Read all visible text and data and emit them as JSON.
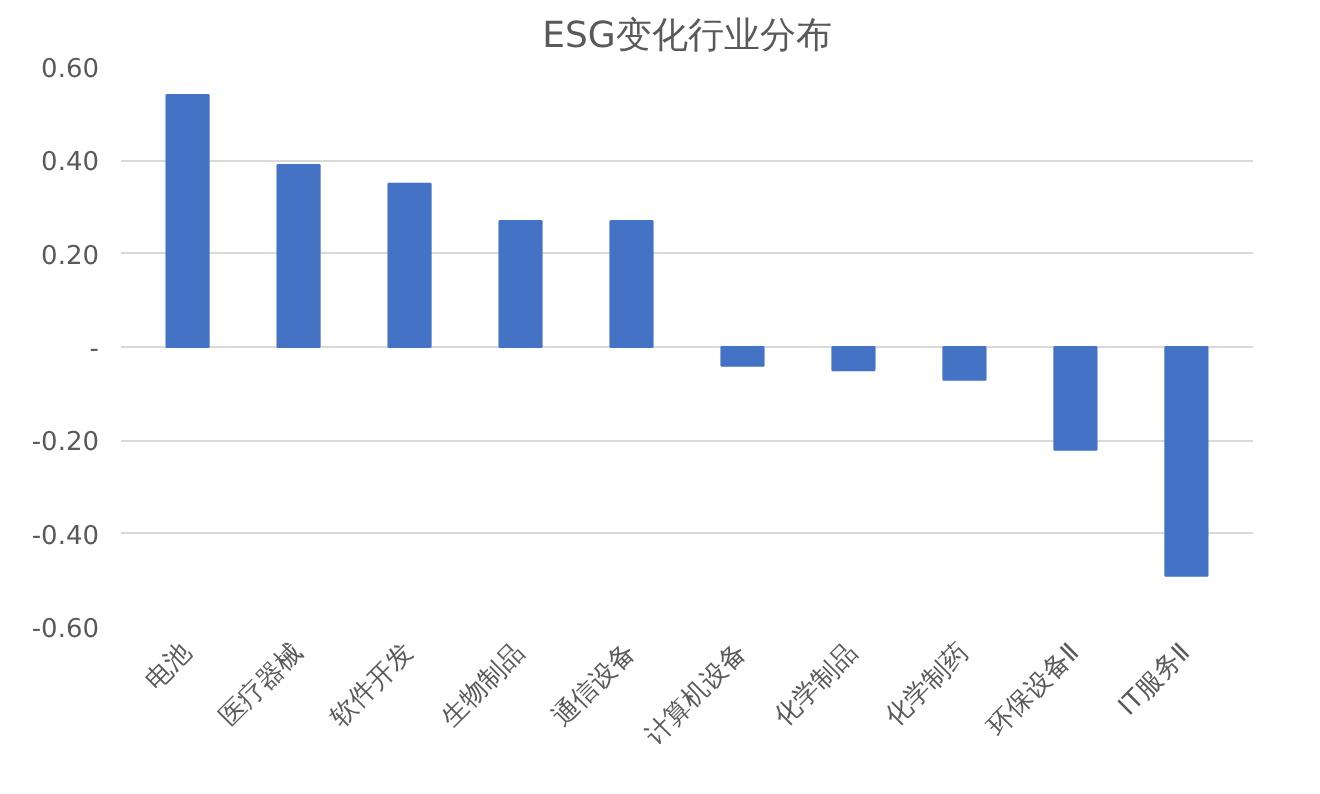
{
  "chart_data": {
    "type": "bar",
    "title": "ESG变化行业分布",
    "categories": [
      "电池",
      "医疗器械",
      "软件开发",
      "生物制品",
      "通信设备",
      "计算机设备",
      "化学制品",
      "化学制药",
      "环保设备Ⅱ",
      "IT服务Ⅱ"
    ],
    "values": [
      0.54,
      0.39,
      0.35,
      0.27,
      0.27,
      -0.04,
      -0.05,
      -0.07,
      -0.22,
      -0.49
    ],
    "color": "#4472c4",
    "ylim": [
      -0.6,
      0.6
    ],
    "yticks": [
      {
        "value": -0.6,
        "label": "-0.60"
      },
      {
        "value": -0.4,
        "label": "-0.40"
      },
      {
        "value": -0.2,
        "label": "-0.20"
      },
      {
        "value": 0,
        "label": "-"
      },
      {
        "value": 0.2,
        "label": "0.20"
      },
      {
        "value": 0.4,
        "label": "0.40"
      },
      {
        "value": 0.6,
        "label": "0.60"
      }
    ],
    "grid": "y"
  }
}
